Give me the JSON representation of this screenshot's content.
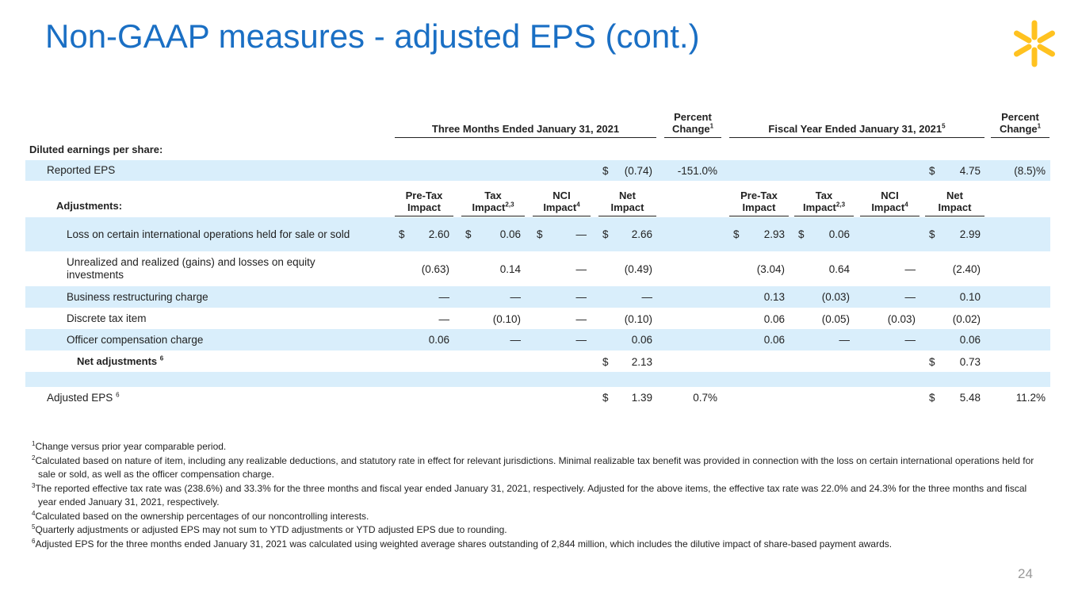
{
  "title": "Non-GAAP measures - adjusted EPS (cont.)",
  "page_number": "24",
  "table": {
    "header": [
      {
        "text": "Three Months Ended January 31, 2021"
      },
      {
        "text": "Percent Change",
        "sup": "1"
      },
      {
        "text": "Fiscal Year Ended January 31, 2021",
        "sup": "5"
      },
      {
        "text": "Percent Change",
        "sup": "1"
      }
    ],
    "adjustments_header": {
      "label": "Adjustments:",
      "columns": [
        {
          "text": "Pre-Tax Impact"
        },
        {
          "text": "Tax Impact",
          "sup": "2,3"
        },
        {
          "text": "NCI Impact",
          "sup": "4"
        },
        {
          "text": "Net Impact"
        },
        {
          "text": "Pre-Tax Impact"
        },
        {
          "text": "Tax Impact",
          "sup": "2,3"
        },
        {
          "text": "NCI Impact",
          "sup": "4"
        },
        {
          "text": "Net Impact"
        }
      ]
    },
    "rows": [
      {
        "label": "Diluted earnings per share:"
      },
      {
        "label": "Reported EPS",
        "cells": [
          null,
          null,
          null,
          {
            "dollar": "$",
            "value": "(0.74)"
          },
          {
            "value": "-151.0%"
          },
          null,
          null,
          null,
          {
            "dollar": "$",
            "value": "4.75"
          },
          {
            "value": "(8.5)%"
          }
        ]
      },
      {
        "label": "Loss on certain international operations held for sale or sold",
        "cells": [
          {
            "dollar": "$",
            "value": "2.60"
          },
          {
            "dollar": "$",
            "value": "0.06"
          },
          {
            "dollar": "$",
            "value": "—"
          },
          {
            "dollar": "$",
            "value": "2.66"
          },
          null,
          {
            "dollar": "$",
            "value": "2.93"
          },
          {
            "dollar": "$",
            "value": "0.06"
          },
          null,
          {
            "dollar": "$",
            "value": "2.99"
          },
          null
        ]
      },
      {
        "label": "Unrealized and realized (gains) and losses on equity investments",
        "cells": [
          {
            "value": "(0.63)"
          },
          {
            "value": "0.14"
          },
          {
            "value": "—"
          },
          {
            "value": "(0.49)"
          },
          null,
          {
            "value": "(3.04)"
          },
          {
            "value": "0.64"
          },
          {
            "value": "—"
          },
          {
            "value": "(2.40)"
          },
          null
        ]
      },
      {
        "label": "Business restructuring charge",
        "cells": [
          {
            "value": "—"
          },
          {
            "value": "—"
          },
          {
            "value": "—"
          },
          {
            "value": "—"
          },
          null,
          {
            "value": "0.13"
          },
          {
            "value": "(0.03)"
          },
          {
            "value": "—"
          },
          {
            "value": "0.10"
          },
          null
        ]
      },
      {
        "label": "Discrete tax item",
        "cells": [
          {
            "value": "—"
          },
          {
            "value": "(0.10)"
          },
          {
            "value": "—"
          },
          {
            "value": "(0.10)"
          },
          null,
          {
            "value": "0.06"
          },
          {
            "value": "(0.05)"
          },
          {
            "value": "(0.03)"
          },
          {
            "value": "(0.02)"
          },
          null
        ]
      },
      {
        "label": "Officer compensation charge",
        "cells": [
          {
            "value": "0.06"
          },
          {
            "value": "—"
          },
          {
            "value": "—"
          },
          {
            "value": "0.06"
          },
          null,
          {
            "value": "0.06"
          },
          {
            "value": "—"
          },
          {
            "value": "—"
          },
          {
            "value": "0.06"
          },
          null
        ]
      },
      {
        "label": "Net adjustments",
        "sup": "6",
        "cells": [
          null,
          null,
          null,
          {
            "dollar": "$",
            "value": "2.13"
          },
          null,
          null,
          null,
          null,
          {
            "dollar": "$",
            "value": "0.73"
          },
          null
        ]
      },
      {
        "label": "Adjusted EPS",
        "sup": "6",
        "cells": [
          null,
          null,
          null,
          {
            "dollar": "$",
            "value": "1.39"
          },
          {
            "value": "0.7%"
          },
          null,
          null,
          null,
          {
            "dollar": "$",
            "value": "5.48"
          },
          {
            "value": "11.2%"
          }
        ]
      }
    ]
  },
  "footnotes": [
    {
      "num": "1",
      "text": "Change versus prior year comparable period."
    },
    {
      "num": "2",
      "text": "Calculated based on nature of item, including any realizable deductions, and statutory rate in effect for relevant jurisdictions.  Minimal realizable tax benefit was provided in connection with the loss on certain international operations held for sale or sold, as well as the officer compensation charge."
    },
    {
      "num": "3",
      "text": "The reported effective tax rate was (238.6%) and 33.3% for the three months and fiscal year ended January 31, 2021, respectively. Adjusted for the above items, the effective tax rate was 22.0% and 24.3% for the three months and fiscal year ended January 31, 2021, respectively."
    },
    {
      "num": "4",
      "text": "Calculated based on the ownership percentages of our noncontrolling interests."
    },
    {
      "num": "5",
      "text": "Quarterly adjustments or adjusted EPS may not sum to YTD adjustments or YTD adjusted EPS due to rounding."
    },
    {
      "num": "6",
      "text": "Adjusted EPS for the three months ended January 31, 2021 was calculated using weighted average shares outstanding of 2,844 million, which includes the dilutive impact of share-based payment awards."
    }
  ]
}
